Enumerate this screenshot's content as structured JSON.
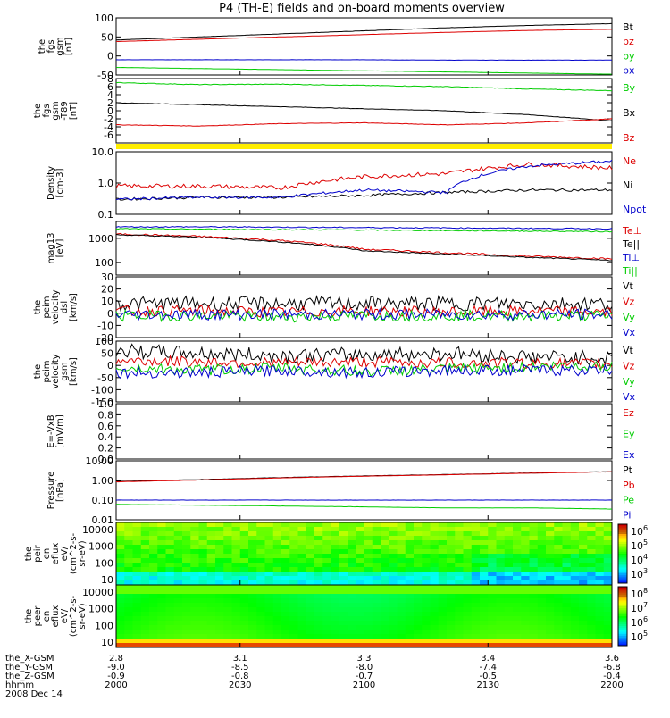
{
  "title": "P4 (TH-E) fields and on-board moments overview",
  "colors": {
    "black": "#000000",
    "red": "#dd0000",
    "green": "#00cc00",
    "blue": "#0000cc",
    "yellow": "#ffee00"
  },
  "chart_data": [
    {
      "id": "fgs",
      "type": "line",
      "ylabel": [
        "the",
        "fgs",
        "gsm",
        "[nT]"
      ],
      "yticks": [
        "100",
        "50",
        "0",
        "-50"
      ],
      "ylim": [
        -50,
        100
      ],
      "series": [
        {
          "name": "Bt",
          "color": "black",
          "values": [
            42,
            50,
            58,
            66,
            74,
            80,
            85
          ]
        },
        {
          "name": "bz",
          "color": "red",
          "values": [
            38,
            44,
            50,
            56,
            62,
            67,
            70
          ]
        },
        {
          "name": "by",
          "color": "green",
          "values": [
            -30,
            -33,
            -36,
            -39,
            -42,
            -45,
            -48
          ]
        },
        {
          "name": "bx",
          "color": "blue",
          "values": [
            -10,
            -10,
            -10,
            -10,
            -11,
            -11,
            -11
          ]
        }
      ]
    },
    {
      "id": "fgs-dsl",
      "type": "line",
      "ylabel": [
        "the",
        "fgs",
        "gsm",
        "-T89",
        "[nT]"
      ],
      "yticks": [
        "8",
        "6",
        "4",
        "2",
        "0",
        "-2",
        "-4",
        "-6"
      ],
      "ylim": [
        -8,
        8
      ],
      "series": [
        {
          "name": "By",
          "color": "green",
          "values": [
            7,
            6.5,
            6.6,
            6.3,
            6.0,
            5.4,
            5.0
          ]
        },
        {
          "name": "Bx",
          "color": "black",
          "values": [
            2,
            1.5,
            1.0,
            0.5,
            0.0,
            -1.0,
            -2.5
          ]
        },
        {
          "name": "Bz",
          "color": "red",
          "values": [
            -3.5,
            -3.8,
            -3.2,
            -3.0,
            -3.5,
            -3.0,
            -2.0
          ]
        }
      ]
    },
    {
      "id": "density",
      "type": "line",
      "scale": "log",
      "ylabel": [
        "Density",
        "[cm-3]"
      ],
      "yticks": [
        "10.0",
        "1.0",
        "0.1"
      ],
      "ylim": [
        0.1,
        10
      ],
      "series": [
        {
          "name": "Ne",
          "color": "red",
          "values": [
            0.8,
            0.8,
            0.7,
            1.6,
            2.0,
            4.0,
            3.0
          ]
        },
        {
          "name": "Ni",
          "color": "black",
          "values": [
            0.3,
            0.35,
            0.35,
            0.4,
            0.5,
            0.6,
            0.6
          ]
        },
        {
          "name": "Npot",
          "color": "blue",
          "values": [
            0.3,
            0.35,
            0.35,
            0.6,
            0.5,
            3.5,
            5.0
          ]
        }
      ]
    },
    {
      "id": "temperature",
      "type": "line",
      "scale": "log",
      "ylabel": [
        "mag13",
        "[eV]"
      ],
      "yticks": [
        "1000",
        "100"
      ],
      "ylim": [
        30,
        5000
      ],
      "series": [
        {
          "name": "Te⊥",
          "color": "red",
          "values": [
            1500,
            1200,
            800,
            350,
            250,
            180,
            140
          ]
        },
        {
          "name": "Te||",
          "color": "black",
          "values": [
            1400,
            1100,
            700,
            300,
            220,
            160,
            120
          ]
        },
        {
          "name": "Ti⊥",
          "color": "blue",
          "values": [
            3000,
            3000,
            2900,
            2800,
            2700,
            2600,
            2500
          ]
        },
        {
          "name": "Ti||",
          "color": "green",
          "values": [
            2500,
            2400,
            2300,
            2200,
            2100,
            2000,
            1900
          ]
        }
      ]
    },
    {
      "id": "velocity-dsl",
      "type": "line",
      "ylabel": [
        "the",
        "peim",
        "velocity",
        "dsl",
        "[km/s]"
      ],
      "yticks": [
        "30",
        "20",
        "10",
        "0",
        "-10",
        "-20"
      ],
      "ylim": [
        -20,
        30
      ],
      "series": [
        {
          "name": "Vt",
          "color": "black",
          "values": [
            8,
            8,
            8,
            8,
            8,
            8,
            8
          ]
        },
        {
          "name": "Vz",
          "color": "red",
          "values": [
            2,
            2,
            1,
            2,
            1,
            2,
            1
          ]
        },
        {
          "name": "Vy",
          "color": "green",
          "values": [
            -2,
            -2,
            -3,
            -2,
            -2,
            -2,
            -2
          ]
        },
        {
          "name": "Vx",
          "color": "blue",
          "values": [
            -1,
            -1,
            -1,
            -1,
            -1,
            -1,
            -1
          ]
        }
      ]
    },
    {
      "id": "velocity-gsm",
      "type": "line",
      "ylabel": [
        "the",
        "peim",
        "velocity",
        "gsm",
        "[km/s]"
      ],
      "yticks": [
        "100",
        "50",
        "0",
        "-50",
        "-100",
        "-150"
      ],
      "ylim": [
        -150,
        100
      ],
      "series": [
        {
          "name": "Vt",
          "color": "black",
          "values": [
            60,
            50,
            40,
            45,
            50,
            35,
            30
          ]
        },
        {
          "name": "Vz",
          "color": "red",
          "values": [
            20,
            15,
            10,
            15,
            10,
            10,
            5
          ]
        },
        {
          "name": "Vy",
          "color": "green",
          "values": [
            -10,
            -20,
            -10,
            -25,
            -15,
            -5,
            0
          ]
        },
        {
          "name": "Vx",
          "color": "blue",
          "values": [
            -30,
            -30,
            -20,
            -30,
            -20,
            -20,
            -20
          ]
        }
      ]
    },
    {
      "id": "efield",
      "type": "line",
      "ylabel": [
        "E=-VxB",
        "[mV/m]"
      ],
      "yticks": [
        "1.0",
        "0.8",
        "0.6",
        "0.4",
        "0.2",
        "0.0"
      ],
      "ylim": [
        0,
        1
      ],
      "series": [
        {
          "name": "Ez",
          "color": "red",
          "values": []
        },
        {
          "name": "Ey",
          "color": "green",
          "values": []
        },
        {
          "name": "Ex",
          "color": "blue",
          "values": []
        }
      ]
    },
    {
      "id": "pressure",
      "type": "line",
      "scale": "log",
      "ylabel": [
        "Pressure",
        "[nPa]"
      ],
      "yticks": [
        "10.00",
        "1.00",
        "0.10",
        "0.01"
      ],
      "ylim": [
        0.01,
        10
      ],
      "series": [
        {
          "name": "Pt",
          "color": "black",
          "values": [
            0.9,
            1.1,
            1.4,
            1.7,
            2.0,
            2.4,
            2.8
          ]
        },
        {
          "name": "Pb",
          "color": "red",
          "values": [
            0.85,
            1.05,
            1.35,
            1.65,
            1.95,
            2.35,
            2.75
          ]
        },
        {
          "name": "Pe",
          "color": "green",
          "values": [
            0.06,
            0.055,
            0.05,
            0.045,
            0.04,
            0.04,
            0.035
          ]
        },
        {
          "name": "Pi",
          "color": "blue",
          "values": [
            0.1,
            0.1,
            0.1,
            0.1,
            0.1,
            0.1,
            0.1
          ]
        }
      ]
    },
    {
      "id": "peir-spec",
      "type": "heatmap",
      "ylabel": [
        "the",
        "peir",
        "en",
        "eflux",
        "eV/",
        "(cm^2-s-",
        "sr-eV)"
      ],
      "yticks": [
        "10000",
        "1000",
        "100",
        "10"
      ],
      "colorbar": [
        "10^6",
        "10^5",
        "10^4",
        "10^3"
      ]
    },
    {
      "id": "peer-spec",
      "type": "heatmap",
      "ylabel": [
        "the",
        "peer",
        "en",
        "eflux",
        "eV/",
        "(cm^2-s-",
        "sr-eV)"
      ],
      "yticks": [
        "10000",
        "1000",
        "100",
        "10"
      ],
      "colorbar": [
        "10^8",
        "10^7",
        "10^6",
        "10^5"
      ]
    }
  ],
  "time_axis": {
    "rows": [
      {
        "label": "the_X-GSM",
        "values": [
          "2.8",
          "3.1",
          "3.3",
          "3.4",
          "3.6"
        ]
      },
      {
        "label": "the_Y-GSM",
        "values": [
          "-9.0",
          "-8.5",
          "-8.0",
          "-7.4",
          "-6.8"
        ]
      },
      {
        "label": "the_Z-GSM",
        "values": [
          "-0.9",
          "-0.8",
          "-0.7",
          "-0.5",
          "-0.4"
        ]
      },
      {
        "label": "hhmm",
        "values": [
          "2000",
          "2030",
          "2100",
          "2130",
          "2200"
        ]
      }
    ],
    "date": "2008 Dec 14"
  }
}
